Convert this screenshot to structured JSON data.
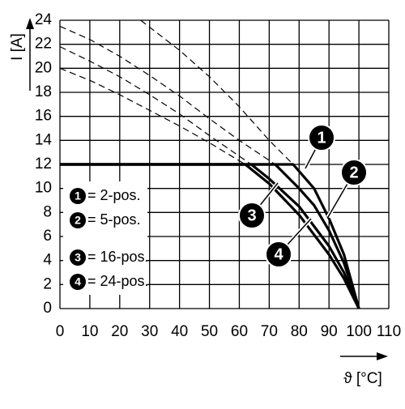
{
  "chart_data": {
    "type": "line",
    "x_label": "ϑ [°C]",
    "y_label": "I [A]",
    "xlim": [
      0,
      110
    ],
    "ylim": [
      0,
      24
    ],
    "xticks": [
      0,
      10,
      20,
      30,
      40,
      50,
      60,
      70,
      80,
      90,
      100,
      110
    ],
    "yticks": [
      0,
      2,
      4,
      6,
      8,
      10,
      12,
      14,
      16,
      18,
      20,
      22,
      24
    ],
    "grid": true,
    "series": [
      {
        "marker": "1",
        "name": "= 2-pos.",
        "color": "#000000",
        "x": [
          0,
          78,
          85,
          90,
          95,
          100
        ],
        "values": [
          12,
          12,
          10,
          7.5,
          4.5,
          0
        ],
        "ext_x": [
          27,
          40,
          50,
          60,
          70,
          78
        ],
        "ext_values": [
          24,
          21.5,
          19.3,
          16.8,
          14,
          12
        ]
      },
      {
        "marker": "2",
        "name": "= 5-pos.",
        "color": "#000000",
        "x": [
          0,
          72,
          80,
          85,
          90,
          95,
          100
        ],
        "values": [
          12,
          12,
          10,
          8.6,
          6.5,
          3.8,
          0
        ],
        "ext_x": [
          0,
          10,
          20,
          30,
          40,
          50,
          60,
          72
        ],
        "ext_values": [
          23.5,
          22.4,
          21,
          19.4,
          17.7,
          15.8,
          14,
          12
        ]
      },
      {
        "marker": "3",
        "name": "= 16-pos.",
        "color": "#000000",
        "x": [
          0,
          64,
          70,
          80,
          90,
          95,
          100
        ],
        "values": [
          12,
          12,
          10.8,
          8.5,
          5.2,
          3,
          0
        ],
        "ext_x": [
          0,
          10,
          20,
          30,
          40,
          50,
          64
        ],
        "ext_values": [
          21.8,
          20.6,
          19.3,
          17.8,
          16.2,
          14.4,
          12
        ]
      },
      {
        "marker": "4",
        "name": "= 24-pos.",
        "color": "#000000",
        "x": [
          0,
          62,
          70,
          80,
          90,
          95,
          100
        ],
        "values": [
          12,
          12,
          10.4,
          7.8,
          4.5,
          2.5,
          0
        ],
        "ext_x": [
          0,
          10,
          20,
          30,
          40,
          50,
          62
        ],
        "ext_values": [
          20,
          19,
          17.8,
          16.5,
          15.2,
          13.8,
          12
        ]
      }
    ]
  }
}
